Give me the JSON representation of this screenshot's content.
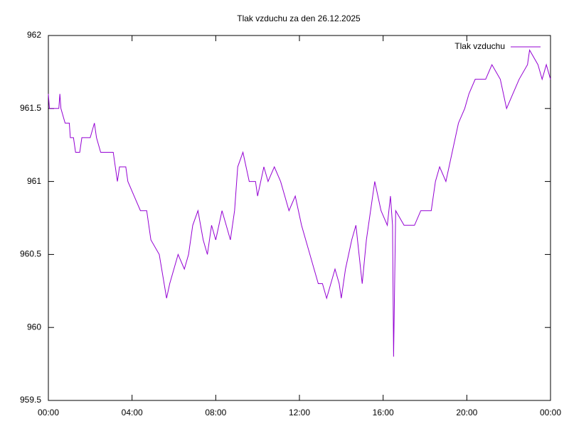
{
  "chart_data": {
    "type": "line",
    "title": "Tlak vzduchu za den 26.12.2025",
    "x": [
      0,
      0.05,
      0.5,
      0.55,
      0.6,
      0.8,
      1.0,
      1.05,
      1.2,
      1.3,
      1.5,
      1.6,
      2.0,
      2.2,
      2.3,
      2.5,
      3.1,
      3.3,
      3.4,
      3.7,
      3.8,
      4.1,
      4.4,
      4.7,
      4.9,
      5.3,
      5.65,
      5.8,
      6.0,
      6.2,
      6.5,
      6.7,
      6.9,
      7.15,
      7.4,
      7.6,
      7.8,
      8.0,
      8.3,
      8.5,
      8.7,
      8.9,
      9.05,
      9.3,
      9.6,
      9.9,
      10.0,
      10.3,
      10.5,
      10.8,
      11.1,
      11.3,
      11.5,
      11.8,
      12.1,
      12.3,
      12.5,
      12.7,
      12.9,
      13.1,
      13.3,
      13.5,
      13.7,
      13.9,
      14.0,
      14.2,
      14.5,
      14.7,
      14.85,
      15.0,
      15.2,
      15.4,
      15.6,
      15.9,
      16.2,
      16.35,
      16.45,
      16.5,
      16.6,
      17.0,
      17.5,
      17.8,
      18.3,
      18.5,
      18.7,
      19.0,
      19.3,
      19.6,
      19.9,
      20.1,
      20.4,
      20.9,
      21.2,
      21.6,
      21.9,
      22.2,
      22.5,
      22.9,
      23.0,
      23.4,
      23.6,
      23.8,
      24.0
    ],
    "series": [
      {
        "name": "Tlak vzduchu",
        "color": "#9400d3",
        "values": [
          961.6,
          961.5,
          961.5,
          961.6,
          961.5,
          961.4,
          961.4,
          961.3,
          961.3,
          961.2,
          961.2,
          961.3,
          961.3,
          961.4,
          961.3,
          961.2,
          961.2,
          961.0,
          961.1,
          961.1,
          961.0,
          960.9,
          960.8,
          960.8,
          960.6,
          960.5,
          960.2,
          960.3,
          960.4,
          960.5,
          960.4,
          960.5,
          960.7,
          960.8,
          960.6,
          960.5,
          960.7,
          960.6,
          960.8,
          960.7,
          960.6,
          960.8,
          961.1,
          961.2,
          961.0,
          961.0,
          960.9,
          961.1,
          961.0,
          961.1,
          961.0,
          960.9,
          960.8,
          960.9,
          960.7,
          960.6,
          960.5,
          960.4,
          960.3,
          960.3,
          960.2,
          960.3,
          960.4,
          960.3,
          960.2,
          960.4,
          960.6,
          960.7,
          960.5,
          960.3,
          960.6,
          960.8,
          961.0,
          960.8,
          960.7,
          960.9,
          960.7,
          959.8,
          960.8,
          960.7,
          960.7,
          960.8,
          960.8,
          961.0,
          961.1,
          961.0,
          961.2,
          961.4,
          961.5,
          961.6,
          961.7,
          961.7,
          961.8,
          961.7,
          961.5,
          961.6,
          961.7,
          961.8,
          961.9,
          961.8,
          961.7,
          961.8,
          961.7
        ]
      }
    ],
    "xlim": [
      0,
      24
    ],
    "xticks": [
      {
        "value": 0,
        "label": "00:00"
      },
      {
        "value": 4,
        "label": "04:00"
      },
      {
        "value": 8,
        "label": "08:00"
      },
      {
        "value": 12,
        "label": "12:00"
      },
      {
        "value": 16,
        "label": "16:00"
      },
      {
        "value": 20,
        "label": "20:00"
      },
      {
        "value": 24,
        "label": "00:00"
      }
    ],
    "ylim": [
      959.5,
      962
    ],
    "yticks": [
      959.5,
      960,
      960.5,
      961,
      961.5,
      962
    ],
    "grid": false,
    "legend": "top-right"
  }
}
